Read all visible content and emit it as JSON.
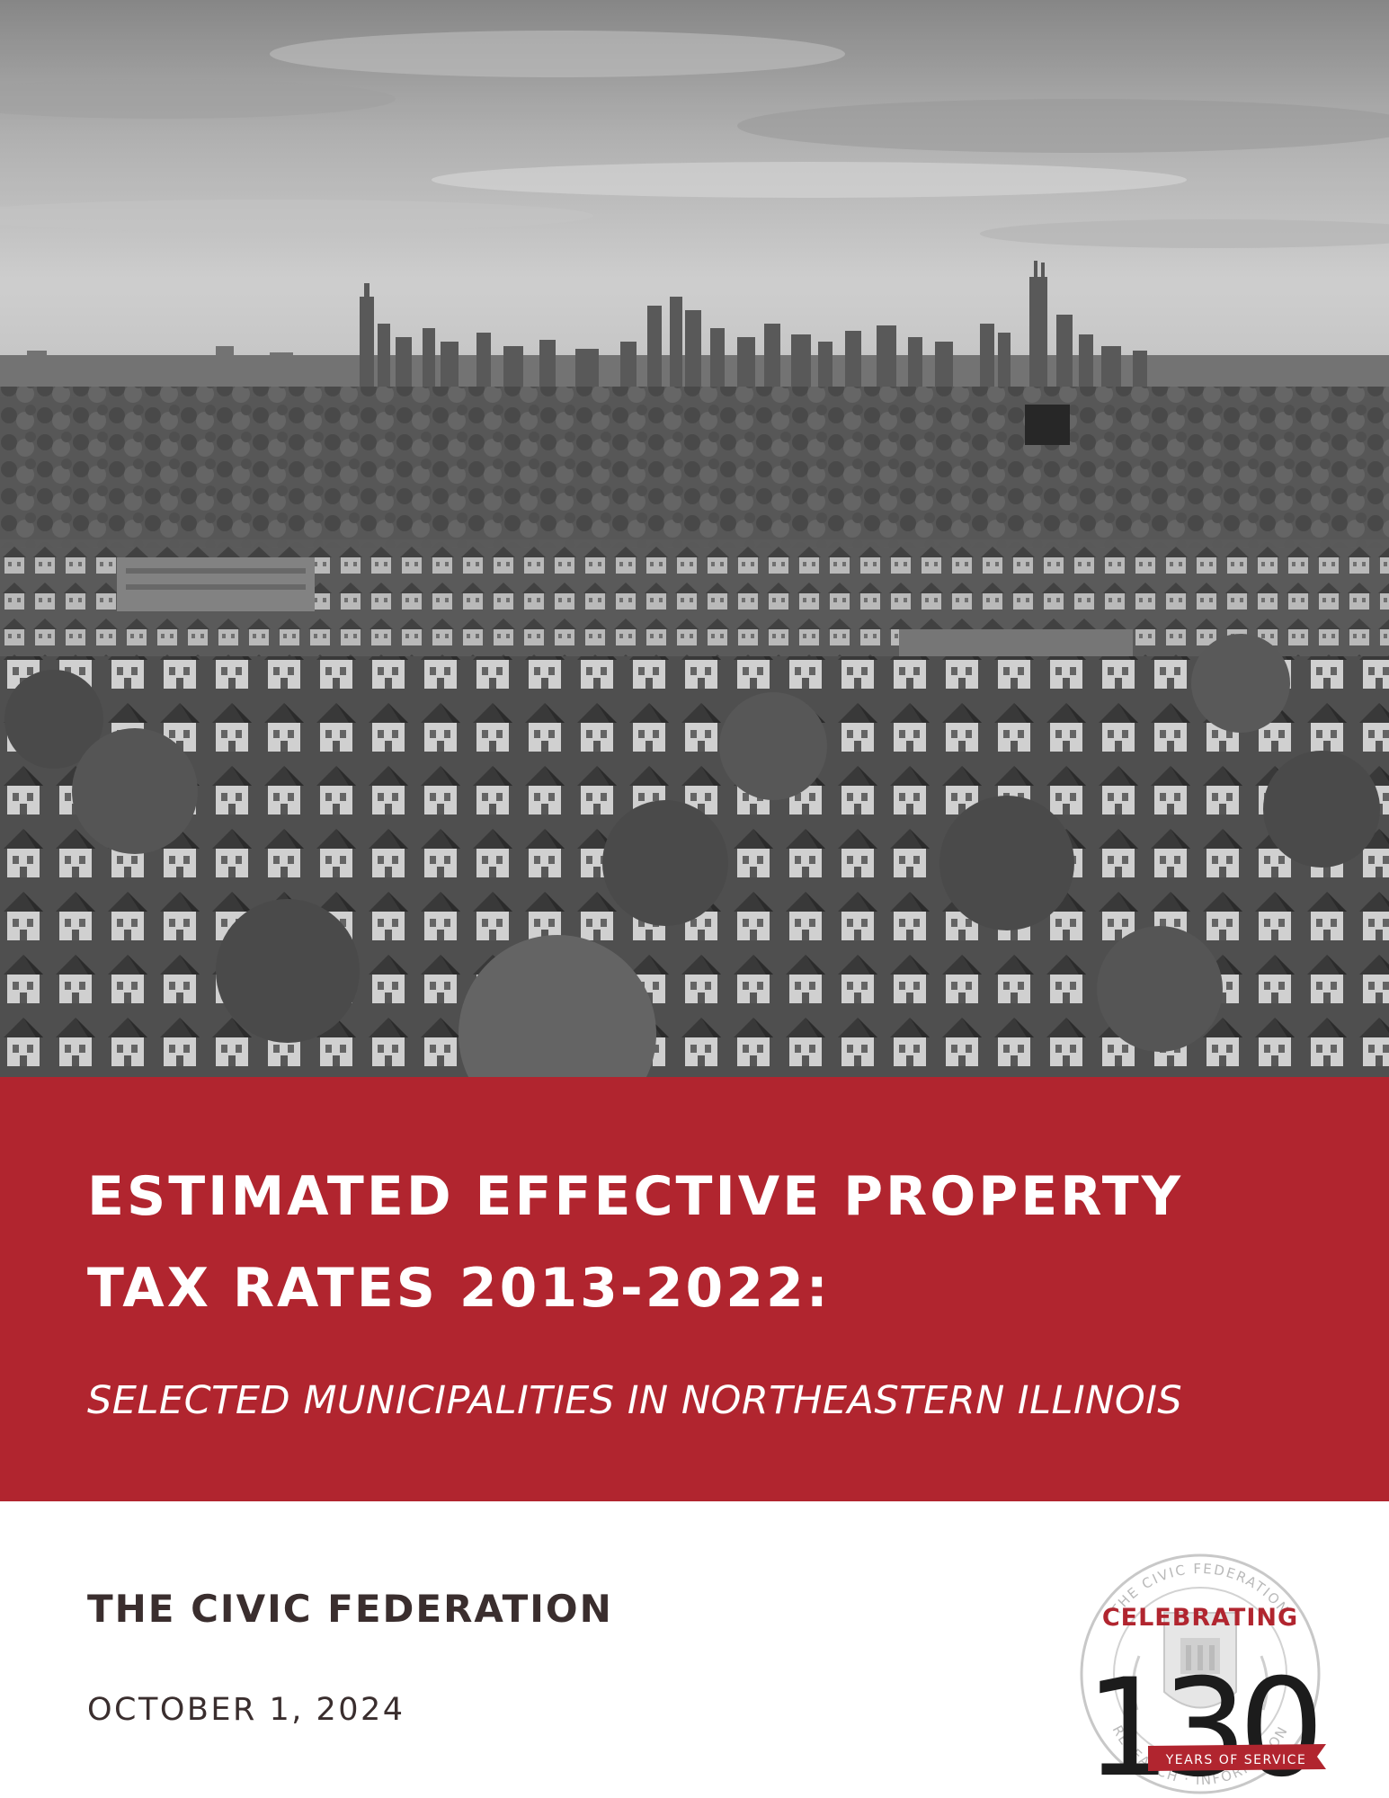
{
  "cover": {
    "photo_icon": "aerial-city-skyline-photo",
    "band_color": "#b1252f"
  },
  "title": {
    "line1": "ESTIMATED EFFECTIVE PROPERTY",
    "line2": "TAX RATES 2013-2022:"
  },
  "subtitle": "SELECTED MUNICIPALITIES IN NORTHEASTERN ILLINOIS",
  "organization": "THE CIVIC FEDERATION",
  "date": "OCTOBER 1, 2024",
  "seal": {
    "icon": "civic-federation-seal-icon",
    "ring_top_text": "THE CIVIC FEDERATION",
    "ring_bottom_text": "RESEARCH · INFORMATION",
    "celebrating": "CELEBRATING",
    "years": "130",
    "ribbon": "YEARS OF SERVICE",
    "accent_color": "#b1252f"
  }
}
